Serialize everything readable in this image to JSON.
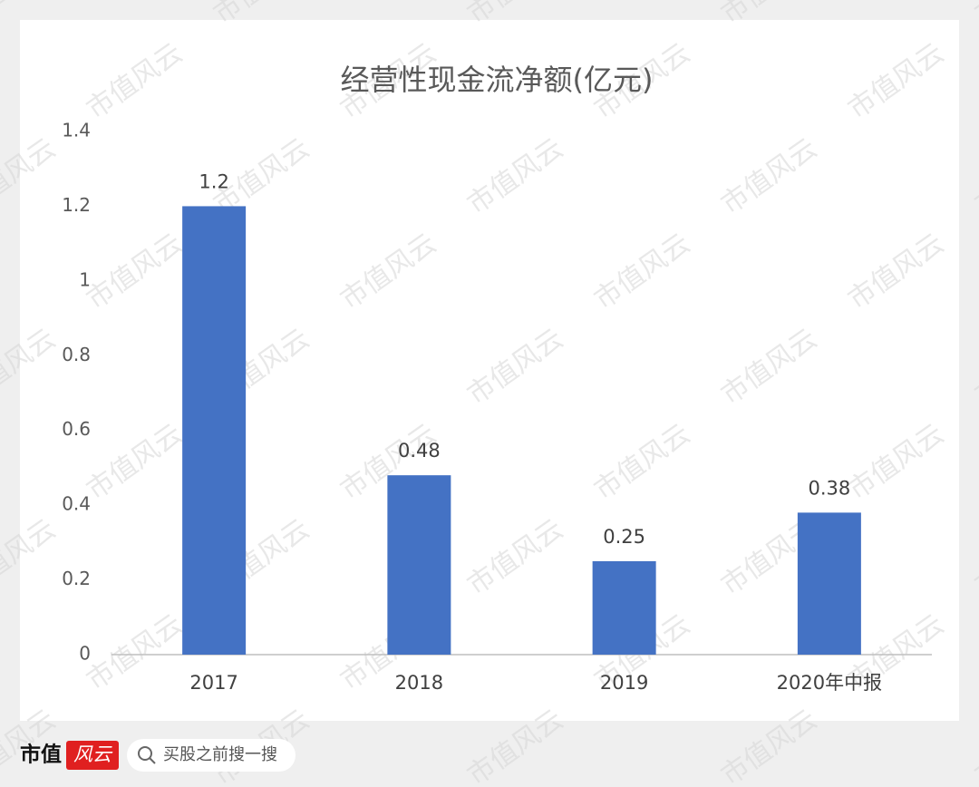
{
  "chart_data": {
    "type": "bar",
    "title": "经营性现金流净额(亿元)",
    "categories": [
      "2017",
      "2018",
      "2019",
      "2020年中报"
    ],
    "values": [
      1.2,
      0.48,
      0.25,
      0.38
    ],
    "color": "#4472c4",
    "ylim": [
      0,
      1.4
    ],
    "yticks": [
      0,
      0.2,
      0.4,
      0.6,
      0.8,
      1,
      1.2,
      1.4
    ],
    "grid": false
  },
  "watermark": "市值风云",
  "footer": {
    "brand": "市值",
    "logo": "风云",
    "search": "买股之前搜一搜"
  }
}
